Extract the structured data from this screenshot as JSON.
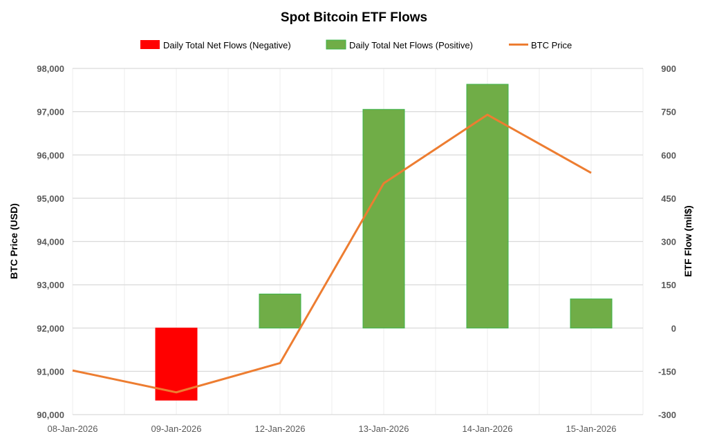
{
  "chart_data": {
    "type": "bar+line",
    "title": "Spot Bitcoin ETF Flows",
    "categories": [
      "08-Jan-2026",
      "09-Jan-2026",
      "12-Jan-2026",
      "13-Jan-2026",
      "14-Jan-2026",
      "15-Jan-2026"
    ],
    "y_left": {
      "label": "BTC Price (USD)",
      "range": [
        90000,
        98000
      ],
      "ticks": [
        "90,000",
        "91,000",
        "92,000",
        "93,000",
        "94,000",
        "95,000",
        "96,000",
        "97,000",
        "98,000"
      ]
    },
    "y_right": {
      "label": "ETF Flow (mil$)",
      "range": [
        -300,
        900
      ],
      "ticks": [
        "-300",
        "-150",
        "0",
        "150",
        "300",
        "450",
        "600",
        "750",
        "900"
      ]
    },
    "grid": true,
    "legend": {
      "position": "top",
      "items": [
        "Daily Total Net Flows (Negative)",
        "Daily Total Net Flows (Positive)",
        "BTC Price"
      ]
    },
    "series": [
      {
        "name": "Daily Total Net Flows",
        "axis": "right",
        "values": [
          0,
          -250,
          118,
          758,
          845,
          101
        ]
      },
      {
        "name": "BTC Price",
        "axis": "left",
        "values": [
          91020,
          90515,
          91190,
          95345,
          96930,
          95585
        ]
      }
    ],
    "colors": {
      "negative": "#FF0000",
      "positive": "#70AD47",
      "positive_border": "#3CB44B",
      "price": "#ED7D31"
    }
  }
}
